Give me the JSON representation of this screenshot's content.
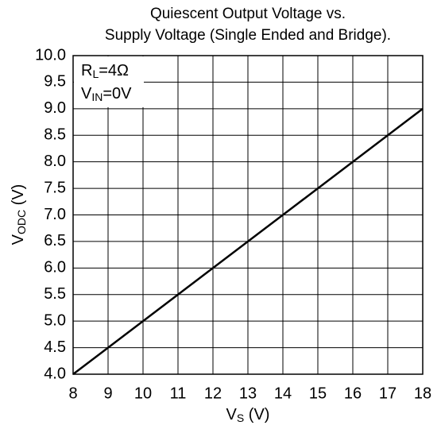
{
  "chart_data": {
    "type": "line",
    "title": [
      "Quiescent Output Voltage vs.",
      "Supply Voltage (Single Ended and Bridge)."
    ],
    "xlabel": [
      "V",
      "S",
      " (V)"
    ],
    "ylabel": [
      "V",
      "ODC",
      " (V)"
    ],
    "annotations": [
      [
        "R",
        "L",
        "=4Ω"
      ],
      [
        "V",
        "IN",
        "=0V"
      ]
    ],
    "x": [
      8,
      18
    ],
    "series": [
      {
        "color": "#000000",
        "values": [
          4,
          9
        ]
      }
    ],
    "xlim": [
      8,
      18
    ],
    "xticks": [
      8,
      9,
      10,
      11,
      12,
      13,
      14,
      15,
      16,
      17,
      18
    ],
    "ylim": [
      4,
      10
    ],
    "yticks": [
      {
        "value": 4,
        "label": "4.0"
      },
      4.5,
      {
        "value": 5,
        "label": "5.0"
      },
      5.5,
      {
        "value": 6,
        "label": "6.0"
      },
      6.5,
      {
        "value": 7,
        "label": "7.0"
      },
      7.5,
      {
        "value": 8,
        "label": "8.0"
      },
      8.5,
      {
        "value": 9,
        "label": "9.0"
      },
      9.5,
      {
        "value": 10,
        "label": "10.0"
      }
    ],
    "grid": true
  }
}
